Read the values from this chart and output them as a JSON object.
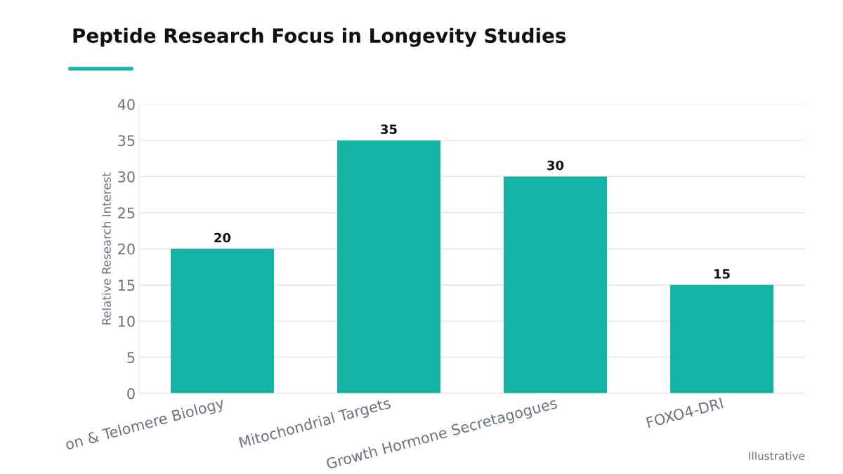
{
  "chart_data": {
    "type": "bar",
    "title": "Peptide Research Focus in Longevity Studies",
    "ylabel": "Relative Research Interest",
    "categories": [
      "on & Telomere Biology",
      "Mitochondrial Targets",
      "Growth Hormone Secretagogues",
      "FOXO4-DRI"
    ],
    "values": [
      20,
      35,
      30,
      15
    ],
    "color": "#14b3a6",
    "ylim": [
      0,
      40
    ],
    "yticks": [
      0,
      5,
      10,
      15,
      20,
      25,
      30,
      35,
      40
    ],
    "grid": "y",
    "data_labels": true,
    "annotations": [
      "Illustrative"
    ]
  }
}
